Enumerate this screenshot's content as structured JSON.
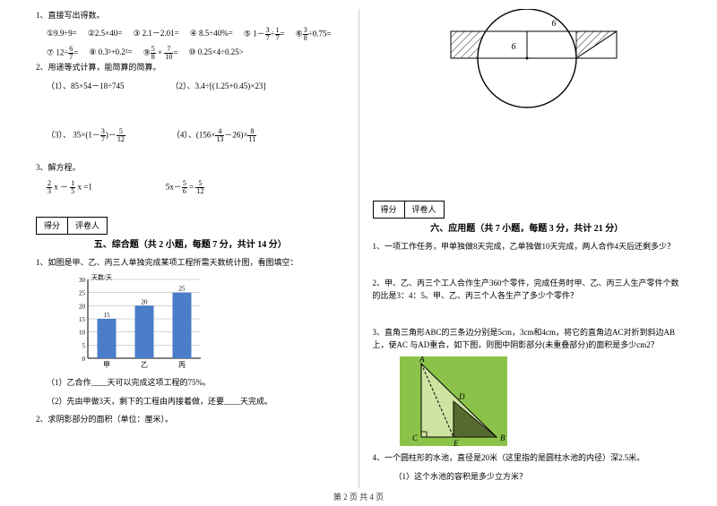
{
  "left": {
    "q1": {
      "stem": "1、直接写出得数。",
      "items": [
        "①9.9÷9=",
        "②2.5×40=",
        "③ 2.1－2.01=",
        "④ 8.5÷40%=",
        "⑤ 1－",
        "⑥",
        "÷0.75=",
        "⑦ 12÷",
        "=",
        "⑧ 0.3²+0.2²=",
        "⑨",
        " × ",
        "=",
        "⑩ 0.25×4÷0.25>"
      ]
    },
    "q2": {
      "stem": "2、用递等式计算，能简算的简算。",
      "a": "（1）、85×54－18÷745",
      "b": "（2）、3.4÷[(1.25+0.45)×23]",
      "c": "（3）、 35×(1－",
      "c2": ")－",
      "d": "（4）、(156×",
      "d2": "－26)×"
    },
    "q3": {
      "stem": "3、解方程。",
      "a": " x － ",
      "a2": " x =1",
      "b": "5x－",
      "b2": " = "
    },
    "score": {
      "l1": "得分",
      "l2": "评卷人"
    },
    "section5": "五、综合题（共 2 小题，每题 7 分，共计 14 分）",
    "q5_1": "1、如图是甲、乙、丙三人单独完成某项工程所需天数统计图，看图填空：",
    "chart": {
      "ylabel": "天数/天",
      "yticks": [
        0,
        5,
        10,
        15,
        20,
        25,
        30
      ],
      "categories": [
        "甲",
        "乙",
        "丙"
      ],
      "values": [
        15,
        20,
        25
      ],
      "ymax": 30,
      "bar_color": "#4a7ec8",
      "grid_color": "#aaa"
    },
    "q5_1a": "（1）乙合作____天可以完成这项工程的75%。",
    "q5_1b": "（2）先由甲做3天，剩下的工程由丙接着做，还要____天完成。",
    "q5_2": "2、求阴影部分的面积（单位：厘米）。"
  },
  "right": {
    "geom": {
      "top_label": "6",
      "mid_label": "6",
      "hatch_color": "#444",
      "circle_stroke": "#000"
    },
    "score": {
      "l1": "得分",
      "l2": "评卷人"
    },
    "section6": "六、应用题（共 7 小题，每题 3 分，共计 21 分）",
    "q1": "1、一项工作任务，甲单独做8天完成，乙单独做10天完成，两人合作4天后还剩多少？",
    "q2": "2、甲、乙、丙三个工人合作生产360个零件，完成任务时甲、乙、丙三人生产零件个数的比是3：4：5。甲、乙、丙三个人各生产了多少个零件？",
    "q3": "3、直角三角形ABC的三条边分别是5cm，3cm和4cm，将它的直角边AC对折到斜边AB上，使AC 与AD重合，如下图，则图中阴影部分(未重叠部分)的面积是多少cm2？",
    "tri": {
      "labels": [
        "A",
        "B",
        "C",
        "D",
        "E"
      ],
      "bg": "#8bc34a",
      "shade": "#556b2f"
    },
    "q4": "4、一个圆柱形的水池，直径是20米（这里指的是圆柱水池的内径）深2.5米。",
    "q4a": "（1）这个水池的容积是多少立方米？"
  },
  "footer": "第 2 页 共 4 页"
}
